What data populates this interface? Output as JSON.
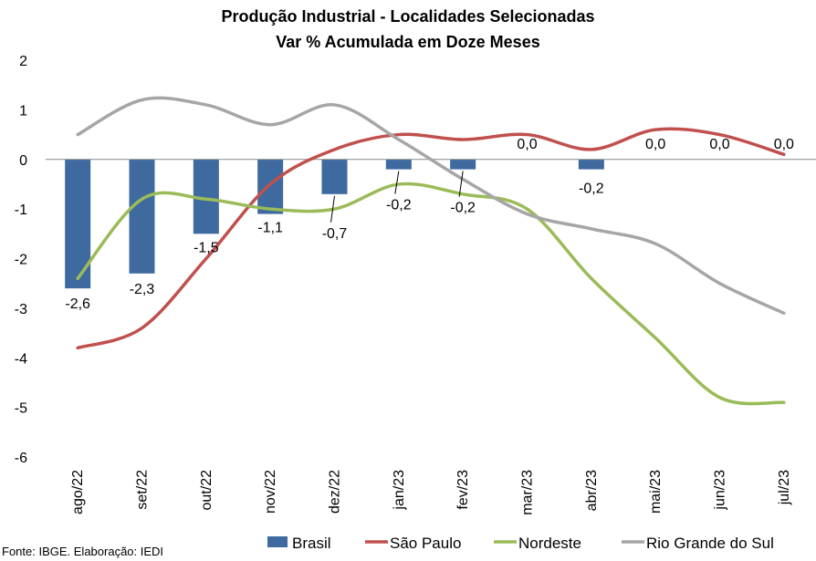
{
  "chart_data": {
    "type": "bar+line",
    "title": "Produção Industrial - Localidades Selecionadas",
    "subtitle": "Var % Acumulada em Doze Meses",
    "categories": [
      "ago/22",
      "set/22",
      "out/22",
      "nov/22",
      "dez/22",
      "jan/23",
      "fev/23",
      "mar/23",
      "abr/23",
      "mai/23",
      "jun/23",
      "jul/23"
    ],
    "ylim": [
      -6,
      2
    ],
    "yticks": [
      2,
      1,
      0,
      -1,
      -2,
      -3,
      -4,
      -5,
      -6
    ],
    "grid": false,
    "legend_position": "bottom",
    "series": [
      {
        "name": "Brasil",
        "kind": "bar",
        "color": "#3F6AA0",
        "values": [
          -2.6,
          -2.3,
          -1.5,
          -1.1,
          -0.7,
          -0.2,
          -0.2,
          0.0,
          -0.2,
          0.0,
          0.0,
          0.0
        ],
        "labels": [
          "-2,6",
          "-2,3",
          "-1,5",
          "-1,1",
          "-0,7",
          "-0,2",
          "-0,2",
          "0,0",
          "-0,2",
          "0,0",
          "0,0",
          "0,0"
        ]
      },
      {
        "name": "São Paulo",
        "kind": "line",
        "color": "#C0504D",
        "values": [
          -3.8,
          -3.4,
          -2.0,
          -0.5,
          0.2,
          0.5,
          0.4,
          0.5,
          0.2,
          0.6,
          0.5,
          0.1
        ]
      },
      {
        "name": "Nordeste",
        "kind": "line",
        "color": "#9BBB59",
        "values": [
          -2.4,
          -0.8,
          -0.8,
          -1.0,
          -1.0,
          -0.5,
          -0.7,
          -1.0,
          -2.4,
          -3.6,
          -4.8,
          -4.9
        ]
      },
      {
        "name": "Rio Grande do Sul",
        "kind": "line",
        "color": "#A6A6A6",
        "values": [
          0.5,
          1.2,
          1.1,
          0.7,
          1.1,
          0.4,
          -0.4,
          -1.1,
          -1.4,
          -1.7,
          -2.5,
          -3.1
        ]
      }
    ]
  },
  "source_note": "Fonte: IBGE. Elaboração: IEDI"
}
